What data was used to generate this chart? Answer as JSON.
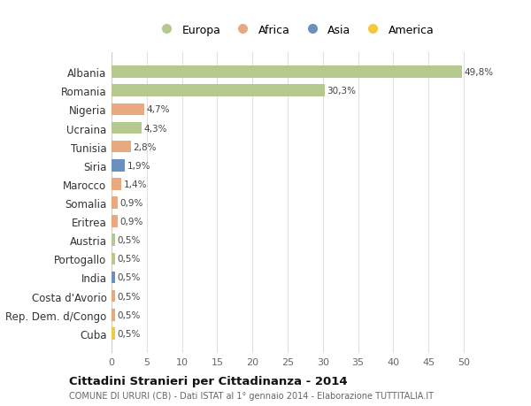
{
  "categories": [
    "Albania",
    "Romania",
    "Nigeria",
    "Ucraina",
    "Tunisia",
    "Siria",
    "Marocco",
    "Somalia",
    "Eritrea",
    "Austria",
    "Portogallo",
    "India",
    "Costa d'Avorio",
    "Rep. Dem. d/Congo",
    "Cuba"
  ],
  "values": [
    49.8,
    30.3,
    4.7,
    4.3,
    2.8,
    1.9,
    1.4,
    0.9,
    0.9,
    0.5,
    0.5,
    0.5,
    0.5,
    0.5,
    0.5
  ],
  "labels": [
    "49,8%",
    "30,3%",
    "4,7%",
    "4,3%",
    "2,8%",
    "1,9%",
    "1,4%",
    "0,9%",
    "0,9%",
    "0,5%",
    "0,5%",
    "0,5%",
    "0,5%",
    "0,5%",
    "0,5%"
  ],
  "colors": [
    "#b5c98e",
    "#b5c98e",
    "#e8a97e",
    "#b5c98e",
    "#e8a97e",
    "#6b8fbf",
    "#e8a97e",
    "#e8a97e",
    "#e8a97e",
    "#b5c98e",
    "#b5c98e",
    "#6b8fbf",
    "#e8a97e",
    "#e8a97e",
    "#f5c842"
  ],
  "legend": [
    {
      "label": "Europa",
      "color": "#b5c98e"
    },
    {
      "label": "Africa",
      "color": "#e8a97e"
    },
    {
      "label": "Asia",
      "color": "#6b8fbf"
    },
    {
      "label": "America",
      "color": "#f5c842"
    }
  ],
  "title": "Cittadini Stranieri per Cittadinanza - 2014",
  "subtitle": "COMUNE DI URURI (CB) - Dati ISTAT al 1° gennaio 2014 - Elaborazione TUTTITALIA.IT",
  "xlim": [
    0,
    52
  ],
  "xticks": [
    0,
    5,
    10,
    15,
    20,
    25,
    30,
    35,
    40,
    45,
    50
  ],
  "bg_color": "#ffffff",
  "grid_color": "#e0e0e0",
  "bar_height": 0.65
}
